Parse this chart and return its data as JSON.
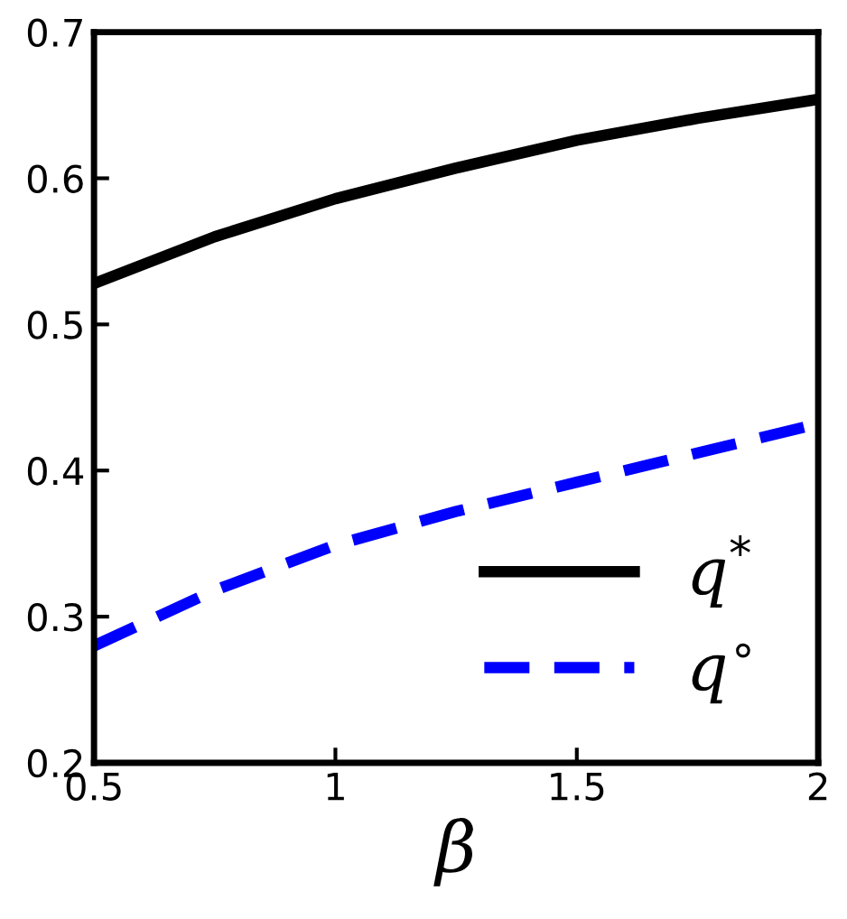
{
  "chart_data": {
    "type": "line",
    "xlabel": "β",
    "x": [
      0.5,
      0.75,
      1,
      1.25,
      1.5,
      1.75,
      2
    ],
    "series": [
      {
        "name": "q$^{*}$",
        "color": "#000000",
        "line_style": "solid",
        "values": [
          0.528,
          0.56,
          0.586,
          0.607,
          0.626,
          0.641,
          0.654
        ]
      },
      {
        "name": "q$^{∘}$",
        "color": "#0000ff",
        "line_style": "dashed",
        "values": [
          0.28,
          0.318,
          0.349,
          0.372,
          0.392,
          0.412,
          0.432
        ]
      }
    ],
    "xlim": [
      0.5,
      2
    ],
    "xticks": [
      0.5,
      1,
      1.5,
      2
    ],
    "ylim": [
      0.2,
      0.7
    ],
    "yticks": [
      0.2,
      0.3,
      0.4,
      0.5,
      0.6,
      0.7
    ],
    "grid": false,
    "legend": "bottom right",
    "marker": "none"
  }
}
